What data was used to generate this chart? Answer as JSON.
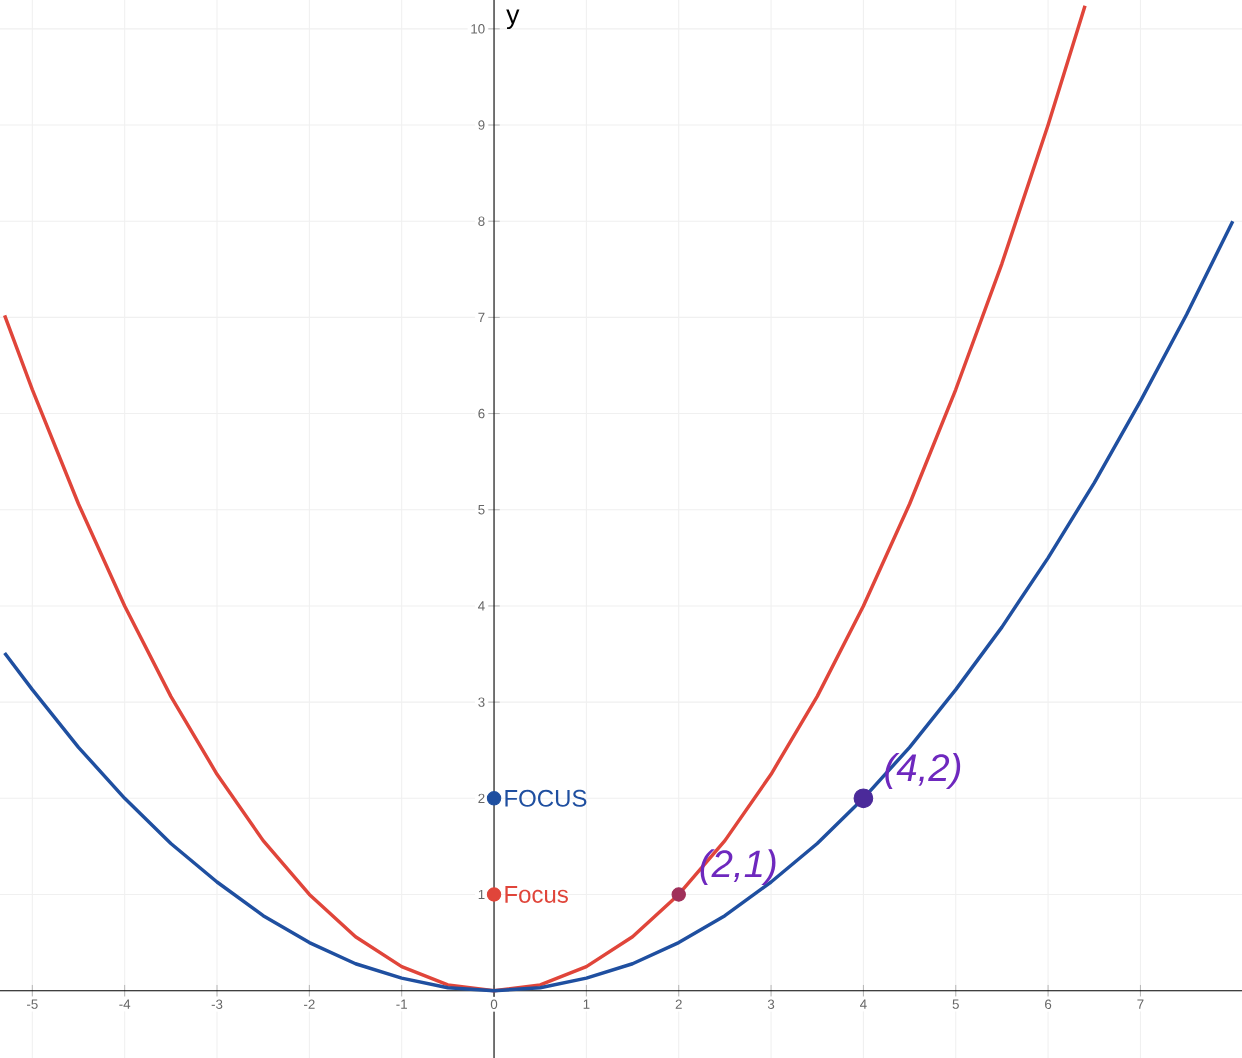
{
  "chart_data": {
    "type": "line",
    "ylabel": "y",
    "xlim": [
      -5.35,
      8.1
    ],
    "ylim": [
      -0.7,
      10.3
    ],
    "xticks": [
      -5,
      -4,
      -3,
      -2,
      -1,
      0,
      1,
      2,
      3,
      4,
      5,
      6,
      7
    ],
    "yticks": [
      1,
      2,
      3,
      4,
      5,
      6,
      7,
      8,
      9,
      10
    ],
    "grid": true,
    "series": [
      {
        "color": "#e0453a",
        "x": [
          -5.3,
          -5,
          -4.5,
          -4,
          -3.5,
          -3,
          -2.5,
          -2,
          -1.5,
          -1,
          -0.5,
          0,
          0.5,
          1,
          1.5,
          2,
          2.5,
          3,
          3.5,
          4,
          4.5,
          5,
          5.5,
          6,
          6.4
        ],
        "values": [
          7.02,
          6.25,
          5.06,
          4,
          3.06,
          2.25,
          1.56,
          1,
          0.56,
          0.25,
          0.06,
          0,
          0.06,
          0.25,
          0.56,
          1,
          1.56,
          2.25,
          3.06,
          4,
          5.06,
          6.25,
          7.56,
          9,
          10.24
        ]
      },
      {
        "color": "#1f4fa0",
        "x": [
          -5.3,
          -5,
          -4.5,
          -4,
          -3.5,
          -3,
          -2.5,
          -2,
          -1.5,
          -1,
          -0.5,
          0,
          0.5,
          1,
          1.5,
          2,
          2.5,
          3,
          3.5,
          4,
          4.5,
          5,
          5.5,
          6,
          6.5,
          7,
          7.5,
          8
        ],
        "values": [
          3.51,
          3.13,
          2.53,
          2,
          1.53,
          1.13,
          0.78,
          0.5,
          0.28,
          0.13,
          0.03,
          0,
          0.03,
          0.13,
          0.28,
          0.5,
          0.78,
          1.13,
          1.53,
          2,
          2.53,
          3.13,
          3.78,
          4.5,
          5.28,
          6.13,
          7.03,
          8
        ]
      },
      {
        "type": "scatter",
        "name": "FOCUS",
        "color": "#1f4fa0",
        "x": [
          0
        ],
        "values": [
          2
        ]
      },
      {
        "type": "scatter",
        "name": "Focus",
        "color": "#e0453a",
        "x": [
          0
        ],
        "values": [
          1
        ]
      },
      {
        "type": "scatter",
        "color": "#a0305a",
        "x": [
          2
        ],
        "values": [
          1
        ]
      },
      {
        "type": "scatter",
        "color": "#4b2a9a",
        "x": [
          4
        ],
        "values": [
          2
        ]
      }
    ],
    "annotations": [
      {
        "text": "(2,1)",
        "x": 2,
        "y": 1
      },
      {
        "text": "(4,2)",
        "x": 4,
        "y": 2
      }
    ]
  }
}
